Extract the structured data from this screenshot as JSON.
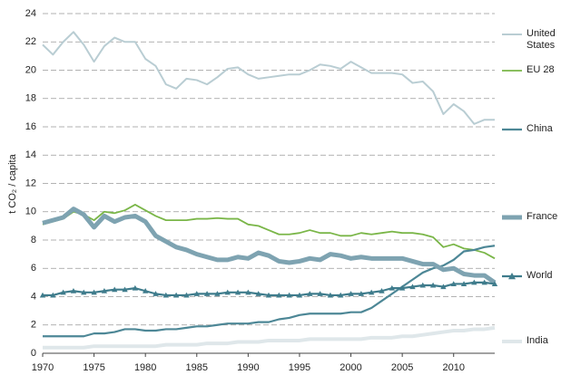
{
  "chart_data": {
    "type": "line",
    "y_label": "t CO₂ / capita",
    "x": [
      1970,
      1971,
      1972,
      1973,
      1974,
      1975,
      1976,
      1977,
      1978,
      1979,
      1980,
      1981,
      1982,
      1983,
      1984,
      1985,
      1986,
      1987,
      1988,
      1989,
      1990,
      1991,
      1992,
      1993,
      1994,
      1995,
      1996,
      1997,
      1998,
      1999,
      2000,
      2001,
      2002,
      2003,
      2004,
      2005,
      2006,
      2007,
      2008,
      2009,
      2010,
      2011,
      2012,
      2013,
      2014
    ],
    "xlim": [
      1970,
      2014
    ],
    "xticks": [
      1970,
      1975,
      1980,
      1985,
      1990,
      1995,
      2000,
      2005,
      2010
    ],
    "ylim": [
      0,
      24
    ],
    "yticks": [
      0,
      2,
      4,
      6,
      8,
      10,
      12,
      14,
      16,
      18,
      20,
      22,
      24
    ],
    "grid": true,
    "series": [
      {
        "name": "United States",
        "color": "#b9cdd3",
        "values": [
          21.8,
          21.1,
          22.0,
          22.7,
          21.8,
          20.6,
          21.7,
          22.3,
          22.0,
          22.0,
          20.8,
          20.3,
          19.0,
          18.7,
          19.4,
          19.3,
          19.0,
          19.5,
          20.1,
          20.2,
          19.7,
          19.4,
          19.5,
          19.6,
          19.7,
          19.7,
          20.0,
          20.4,
          20.3,
          20.1,
          20.6,
          20.2,
          19.8,
          19.8,
          19.8,
          19.7,
          19.1,
          19.2,
          18.5,
          16.9,
          17.6,
          17.1,
          16.2,
          16.5,
          16.5
        ]
      },
      {
        "name": "EU 28",
        "color": "#7ab648",
        "values": [
          9.1,
          9.3,
          9.5,
          10.0,
          9.8,
          9.4,
          10.0,
          9.9,
          10.1,
          10.5,
          10.1,
          9.7,
          9.4,
          9.4,
          9.4,
          9.5,
          9.5,
          9.55,
          9.5,
          9.5,
          9.1,
          9.0,
          8.7,
          8.4,
          8.4,
          8.5,
          8.7,
          8.5,
          8.5,
          8.3,
          8.3,
          8.5,
          8.4,
          8.5,
          8.6,
          8.5,
          8.5,
          8.4,
          8.2,
          7.5,
          7.7,
          7.4,
          7.3,
          7.1,
          6.7
        ]
      },
      {
        "name": "China",
        "color": "#4d8796",
        "values": [
          1.2,
          1.2,
          1.2,
          1.2,
          1.2,
          1.4,
          1.4,
          1.5,
          1.7,
          1.7,
          1.6,
          1.6,
          1.7,
          1.7,
          1.8,
          1.9,
          1.9,
          2.0,
          2.1,
          2.1,
          2.1,
          2.2,
          2.2,
          2.4,
          2.5,
          2.7,
          2.8,
          2.8,
          2.8,
          2.8,
          2.9,
          2.9,
          3.2,
          3.7,
          4.2,
          4.7,
          5.2,
          5.7,
          6.0,
          6.2,
          6.6,
          7.2,
          7.3,
          7.5,
          7.6
        ]
      },
      {
        "name": "France",
        "color": "#7ea3b1",
        "values": [
          9.2,
          9.4,
          9.6,
          10.2,
          9.8,
          8.9,
          9.7,
          9.3,
          9.6,
          9.7,
          9.3,
          8.3,
          7.9,
          7.5,
          7.3,
          7.0,
          6.8,
          6.6,
          6.6,
          6.8,
          6.7,
          7.1,
          6.9,
          6.5,
          6.4,
          6.5,
          6.7,
          6.6,
          7.0,
          6.9,
          6.7,
          6.8,
          6.7,
          6.7,
          6.7,
          6.7,
          6.5,
          6.3,
          6.3,
          5.9,
          6.0,
          5.6,
          5.5,
          5.5,
          5.0
        ]
      },
      {
        "name": "World",
        "color": "#3f7c8c",
        "values": [
          4.1,
          4.1,
          4.3,
          4.4,
          4.3,
          4.3,
          4.4,
          4.5,
          4.5,
          4.6,
          4.4,
          4.2,
          4.1,
          4.1,
          4.1,
          4.2,
          4.2,
          4.2,
          4.3,
          4.3,
          4.3,
          4.2,
          4.1,
          4.1,
          4.1,
          4.1,
          4.2,
          4.2,
          4.1,
          4.1,
          4.2,
          4.2,
          4.3,
          4.4,
          4.6,
          4.6,
          4.7,
          4.8,
          4.8,
          4.7,
          4.9,
          4.9,
          5.0,
          5.0,
          4.9
        ]
      },
      {
        "name": "India",
        "color": "#dfe7ea",
        "values": [
          0.4,
          0.4,
          0.4,
          0.4,
          0.4,
          0.5,
          0.5,
          0.5,
          0.5,
          0.5,
          0.5,
          0.5,
          0.6,
          0.6,
          0.6,
          0.6,
          0.7,
          0.7,
          0.7,
          0.8,
          0.8,
          0.8,
          0.9,
          0.9,
          0.9,
          0.9,
          1.0,
          1.0,
          1.0,
          1.0,
          1.0,
          1.0,
          1.1,
          1.1,
          1.1,
          1.2,
          1.2,
          1.3,
          1.4,
          1.5,
          1.6,
          1.6,
          1.7,
          1.7,
          1.8
        ]
      }
    ]
  }
}
